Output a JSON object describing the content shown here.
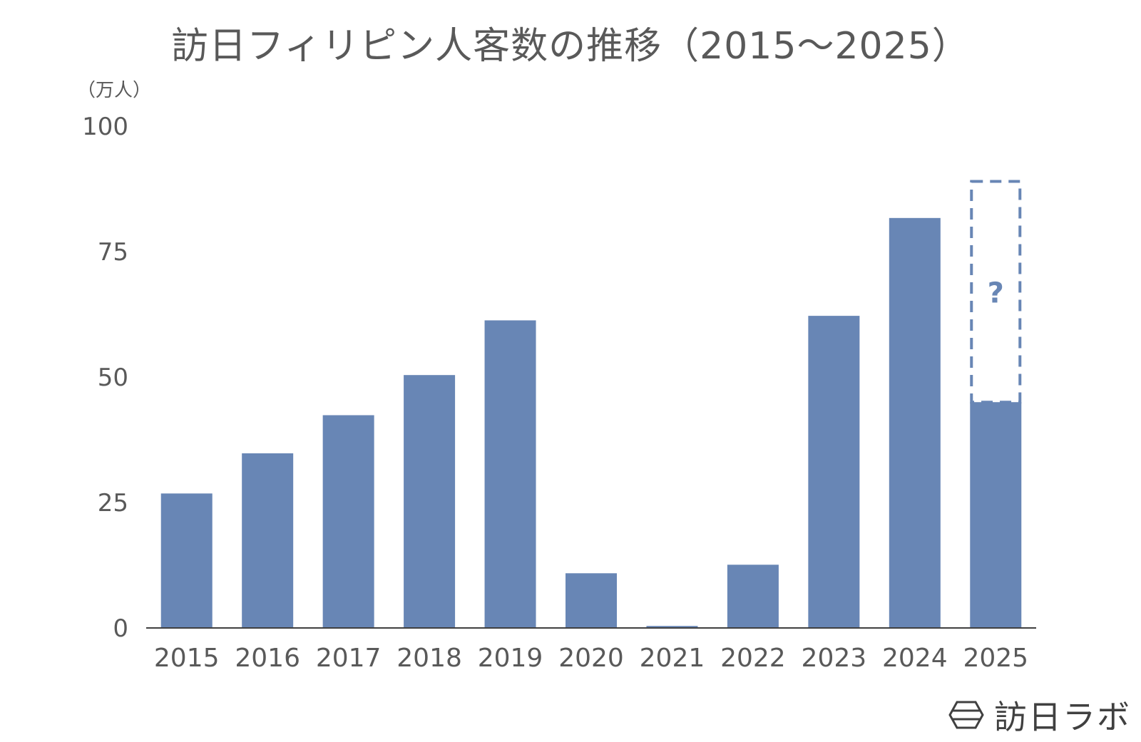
{
  "chart_data": {
    "type": "bar",
    "title": "訪日フィリピン人客数の推移（2015～2025）",
    "ylabel": "（万人）",
    "xlabel": "",
    "ylim": [
      0,
      100
    ],
    "yticks": [
      0,
      25,
      50,
      75,
      100
    ],
    "categories": [
      "2015",
      "2016",
      "2017",
      "2018",
      "2019",
      "2020",
      "2021",
      "2022",
      "2023",
      "2024",
      "2025"
    ],
    "values": [
      26.8,
      34.8,
      42.4,
      50.4,
      61.3,
      10.9,
      0.4,
      12.6,
      62.2,
      81.7,
      45.0
    ],
    "projection": {
      "category": "2025",
      "value": 89.0,
      "label": "?",
      "style": "dashed"
    },
    "grid": false,
    "legend": "none"
  },
  "colors": {
    "bar": "#6886b5",
    "text": "#595959",
    "axis": "#404040",
    "projection": "#6886b5"
  },
  "logo": {
    "icon": "hexagon-logo-icon",
    "text": "訪日ラボ"
  }
}
